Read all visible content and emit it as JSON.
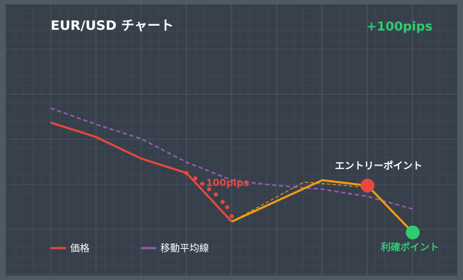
{
  "chart_data": {
    "type": "line",
    "title": "EUR/USD チャート",
    "badge": "+100pips",
    "x": [
      1,
      2,
      3,
      4,
      5,
      6,
      7,
      8,
      9,
      10
    ],
    "ylim": [
      0,
      100
    ],
    "series": [
      {
        "name": "価格",
        "color": "#e8483e",
        "values": [
          82,
          74,
          62,
          54,
          27,
          null,
          null,
          null,
          null,
          null
        ]
      },
      {
        "name": "移動平均線",
        "color": "#9b59b6",
        "values": [
          90,
          81,
          73,
          60,
          50,
          47,
          45,
          41,
          34,
          null
        ]
      }
    ],
    "trade_path": {
      "color": "#f39c12",
      "points": [
        [
          5,
          27
        ],
        [
          7,
          50
        ],
        [
          8,
          47
        ],
        [
          9,
          21
        ]
      ]
    },
    "trade_path_guide": {
      "color": "#f39c12",
      "points": [
        [
          5,
          27
        ],
        [
          6.6,
          49
        ],
        [
          8,
          46
        ]
      ]
    },
    "price_markers": {
      "color": "#e8483e",
      "points": [
        [
          4,
          54
        ],
        [
          4.2,
          51
        ],
        [
          4.35,
          48
        ],
        [
          4.5,
          45
        ],
        [
          4.65,
          42
        ],
        [
          4.8,
          38
        ],
        [
          4.9,
          35
        ],
        [
          5,
          30
        ]
      ]
    },
    "entry_point": {
      "label": "エントリーポイント",
      "x": 8,
      "y": 47,
      "color": "#e8483e"
    },
    "exit_point": {
      "label": "利確ポイント",
      "x": 9,
      "y": 21,
      "color": "#2ecc71"
    },
    "annotations": [
      {
        "text": "100pips",
        "x": 4.4,
        "y": 49,
        "color": "#e8483e"
      }
    ],
    "grid": true,
    "legend_position": "bottom-left",
    "colors": {
      "background": "#363f4a",
      "frame": "#4e5a64",
      "grid": "#4a5562",
      "badge": "#2ecc71",
      "title": "#ffffff"
    }
  }
}
